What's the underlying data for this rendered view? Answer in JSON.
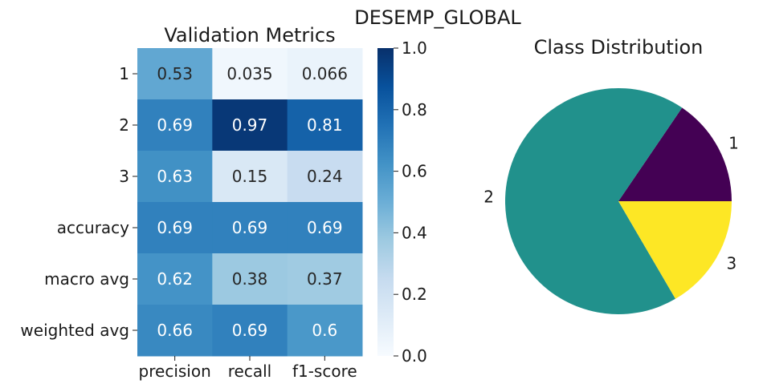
{
  "figure": {
    "suptitle": "DESEMP_GLOBAL"
  },
  "chart_data": [
    {
      "type": "heatmap",
      "title": "Validation Metrics",
      "rows": [
        "1",
        "2",
        "3",
        "accuracy",
        "macro avg",
        "weighted avg"
      ],
      "columns": [
        "precision",
        "recall",
        "f1-score"
      ],
      "values": [
        [
          0.53,
          0.035,
          0.066
        ],
        [
          0.69,
          0.97,
          0.81
        ],
        [
          0.63,
          0.15,
          0.24
        ],
        [
          0.69,
          0.69,
          0.69
        ],
        [
          0.62,
          0.38,
          0.37
        ],
        [
          0.66,
          0.69,
          0.6
        ]
      ],
      "labels": [
        [
          "0.53",
          "0.035",
          "0.066"
        ],
        [
          "0.69",
          "0.97",
          "0.81"
        ],
        [
          "0.63",
          "0.15",
          "0.24"
        ],
        [
          "0.69",
          "0.69",
          "0.69"
        ],
        [
          "0.62",
          "0.38",
          "0.37"
        ],
        [
          "0.66",
          "0.69",
          "0.6"
        ]
      ],
      "colormap": "Blues",
      "colorbar": {
        "range": [
          0,
          1
        ],
        "ticks": [
          0.0,
          0.2,
          0.4,
          0.6,
          0.8,
          1.0
        ],
        "tick_labels": [
          "0.0",
          "0.2",
          "0.4",
          "0.6",
          "0.8",
          "1.0"
        ]
      }
    },
    {
      "type": "pie",
      "title": "Class Distribution",
      "labels": [
        "1",
        "2",
        "3"
      ],
      "values": [
        15.5,
        67.9,
        16.6
      ],
      "colors": [
        "#440154",
        "#21918c",
        "#fde725"
      ],
      "start_angle_deg": 0,
      "direction": "counterclockwise"
    }
  ]
}
